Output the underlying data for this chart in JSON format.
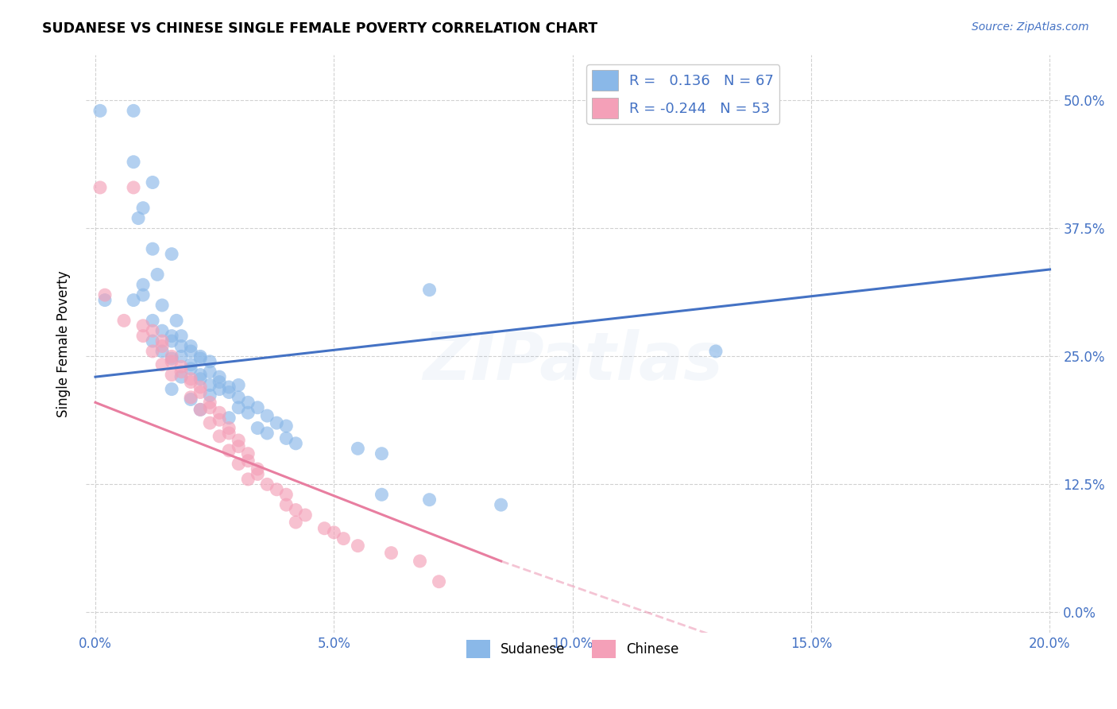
{
  "title": "SUDANESE VS CHINESE SINGLE FEMALE POVERTY CORRELATION CHART",
  "source": "Source: ZipAtlas.com",
  "xlabel_ticks": [
    "0.0%",
    "5.0%",
    "10.0%",
    "15.0%",
    "20.0%"
  ],
  "ylabel_ticks_right": [
    "0.0%",
    "12.5%",
    "25.0%",
    "37.5%",
    "50.0%"
  ],
  "xlim": [
    -0.002,
    0.202
  ],
  "ylim": [
    -0.02,
    0.545
  ],
  "sudanese_color": "#8AB8E8",
  "chinese_color": "#F4A0B8",
  "sudanese_R": 0.136,
  "sudanese_N": 67,
  "chinese_R": -0.244,
  "chinese_N": 53,
  "sudanese_line_color": "#4472C4",
  "chinese_line_color": "#E87EA0",
  "watermark": "ZIPatlas",
  "sudanese_points": [
    [
      0.001,
      0.49
    ],
    [
      0.008,
      0.49
    ],
    [
      0.008,
      0.44
    ],
    [
      0.012,
      0.42
    ],
    [
      0.01,
      0.395
    ],
    [
      0.009,
      0.385
    ],
    [
      0.012,
      0.355
    ],
    [
      0.016,
      0.35
    ],
    [
      0.013,
      0.33
    ],
    [
      0.01,
      0.32
    ],
    [
      0.01,
      0.31
    ],
    [
      0.002,
      0.305
    ],
    [
      0.008,
      0.305
    ],
    [
      0.014,
      0.3
    ],
    [
      0.012,
      0.285
    ],
    [
      0.017,
      0.285
    ],
    [
      0.014,
      0.275
    ],
    [
      0.016,
      0.27
    ],
    [
      0.018,
      0.27
    ],
    [
      0.016,
      0.265
    ],
    [
      0.012,
      0.265
    ],
    [
      0.018,
      0.26
    ],
    [
      0.02,
      0.26
    ],
    [
      0.02,
      0.255
    ],
    [
      0.014,
      0.255
    ],
    [
      0.018,
      0.25
    ],
    [
      0.022,
      0.25
    ],
    [
      0.022,
      0.248
    ],
    [
      0.016,
      0.248
    ],
    [
      0.024,
      0.245
    ],
    [
      0.02,
      0.242
    ],
    [
      0.02,
      0.238
    ],
    [
      0.024,
      0.235
    ],
    [
      0.022,
      0.232
    ],
    [
      0.018,
      0.23
    ],
    [
      0.026,
      0.23
    ],
    [
      0.022,
      0.228
    ],
    [
      0.026,
      0.225
    ],
    [
      0.024,
      0.222
    ],
    [
      0.03,
      0.222
    ],
    [
      0.028,
      0.22
    ],
    [
      0.016,
      0.218
    ],
    [
      0.026,
      0.218
    ],
    [
      0.028,
      0.215
    ],
    [
      0.024,
      0.212
    ],
    [
      0.03,
      0.21
    ],
    [
      0.02,
      0.208
    ],
    [
      0.032,
      0.205
    ],
    [
      0.034,
      0.2
    ],
    [
      0.03,
      0.2
    ],
    [
      0.022,
      0.198
    ],
    [
      0.032,
      0.195
    ],
    [
      0.036,
      0.192
    ],
    [
      0.028,
      0.19
    ],
    [
      0.038,
      0.185
    ],
    [
      0.04,
      0.182
    ],
    [
      0.034,
      0.18
    ],
    [
      0.036,
      0.175
    ],
    [
      0.04,
      0.17
    ],
    [
      0.042,
      0.165
    ],
    [
      0.055,
      0.16
    ],
    [
      0.06,
      0.155
    ],
    [
      0.07,
      0.315
    ],
    [
      0.13,
      0.255
    ],
    [
      0.06,
      0.115
    ],
    [
      0.07,
      0.11
    ],
    [
      0.085,
      0.105
    ]
  ],
  "chinese_points": [
    [
      0.001,
      0.415
    ],
    [
      0.008,
      0.415
    ],
    [
      0.002,
      0.31
    ],
    [
      0.006,
      0.285
    ],
    [
      0.01,
      0.28
    ],
    [
      0.012,
      0.275
    ],
    [
      0.01,
      0.27
    ],
    [
      0.014,
      0.265
    ],
    [
      0.014,
      0.26
    ],
    [
      0.012,
      0.255
    ],
    [
      0.016,
      0.25
    ],
    [
      0.016,
      0.245
    ],
    [
      0.014,
      0.242
    ],
    [
      0.018,
      0.24
    ],
    [
      0.018,
      0.235
    ],
    [
      0.016,
      0.232
    ],
    [
      0.02,
      0.228
    ],
    [
      0.02,
      0.225
    ],
    [
      0.022,
      0.22
    ],
    [
      0.022,
      0.215
    ],
    [
      0.02,
      0.21
    ],
    [
      0.024,
      0.205
    ],
    [
      0.024,
      0.2
    ],
    [
      0.022,
      0.198
    ],
    [
      0.026,
      0.195
    ],
    [
      0.026,
      0.188
    ],
    [
      0.024,
      0.185
    ],
    [
      0.028,
      0.18
    ],
    [
      0.028,
      0.175
    ],
    [
      0.026,
      0.172
    ],
    [
      0.03,
      0.168
    ],
    [
      0.03,
      0.162
    ],
    [
      0.028,
      0.158
    ],
    [
      0.032,
      0.155
    ],
    [
      0.032,
      0.148
    ],
    [
      0.03,
      0.145
    ],
    [
      0.034,
      0.14
    ],
    [
      0.034,
      0.135
    ],
    [
      0.032,
      0.13
    ],
    [
      0.036,
      0.125
    ],
    [
      0.038,
      0.12
    ],
    [
      0.04,
      0.115
    ],
    [
      0.04,
      0.105
    ],
    [
      0.042,
      0.1
    ],
    [
      0.044,
      0.095
    ],
    [
      0.042,
      0.088
    ],
    [
      0.048,
      0.082
    ],
    [
      0.05,
      0.078
    ],
    [
      0.052,
      0.072
    ],
    [
      0.055,
      0.065
    ],
    [
      0.062,
      0.058
    ],
    [
      0.068,
      0.05
    ],
    [
      0.072,
      0.03
    ]
  ],
  "sudanese_trend": [
    0.0,
    0.2,
    0.23,
    0.335
  ],
  "chinese_trend_solid": [
    0.0,
    0.085,
    0.205,
    0.05
  ],
  "chinese_trend_dashed": [
    0.085,
    0.14,
    0.05,
    -0.04
  ]
}
